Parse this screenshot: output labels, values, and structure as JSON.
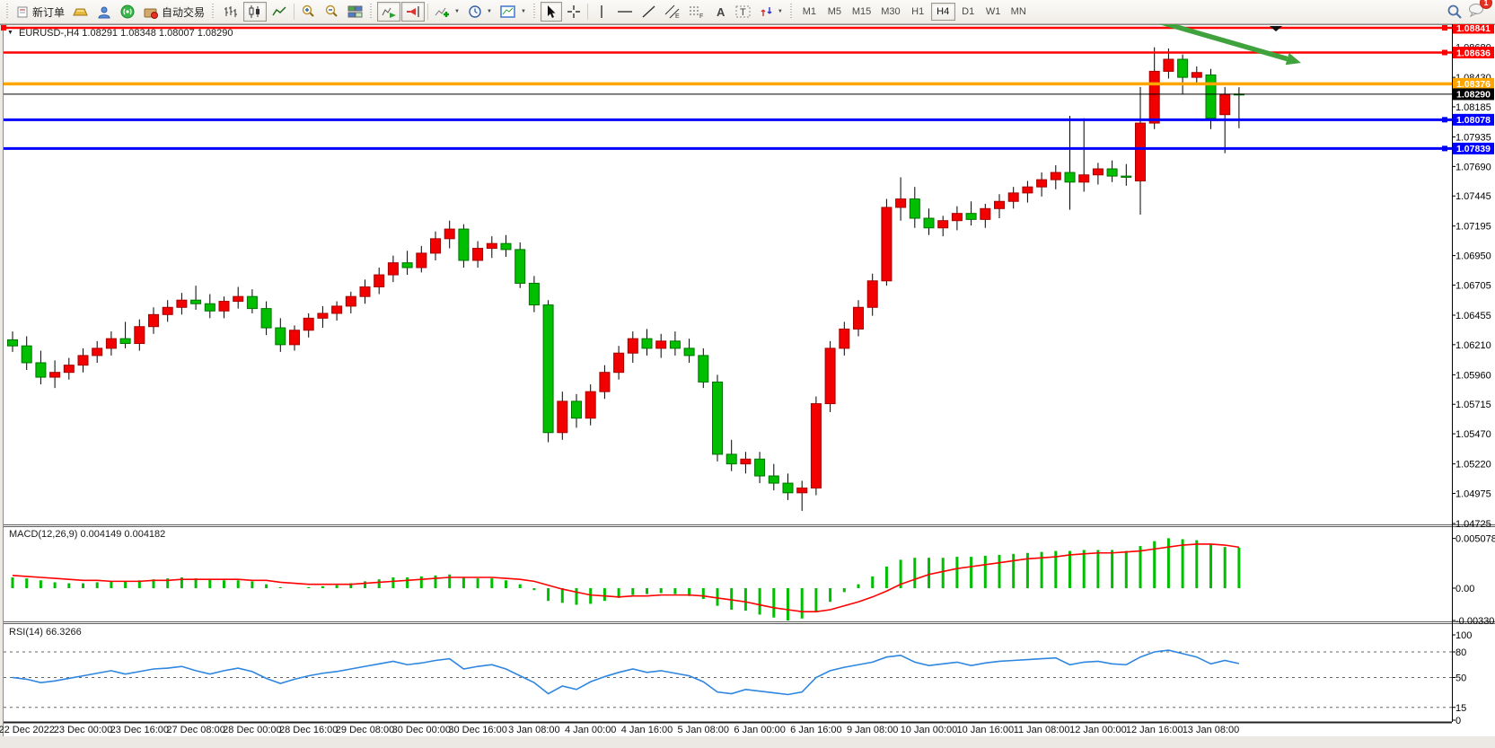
{
  "toolbar": {
    "new_order": "新订单",
    "auto_trading": "自动交易",
    "timeframes": [
      {
        "label": "M1",
        "active": false
      },
      {
        "label": "M5",
        "active": false
      },
      {
        "label": "M15",
        "active": false
      },
      {
        "label": "M30",
        "active": false
      },
      {
        "label": "H1",
        "active": false
      },
      {
        "label": "H4",
        "active": true
      },
      {
        "label": "D1",
        "active": false
      },
      {
        "label": "W1",
        "active": false
      },
      {
        "label": "MN",
        "active": false
      }
    ],
    "notification_count": "1"
  },
  "chart": {
    "title": "EURUSD-,H4 1.08291 1.08348 1.08007 1.08290",
    "symbol": "EURUSD-",
    "timeframe": "H4",
    "ohlc": {
      "open": "1.08291",
      "high": "1.08348",
      "low": "1.08007",
      "close": "1.08290"
    }
  },
  "chart_data": {
    "type": "candlestick",
    "title": "EURUSD- H4",
    "y_range": {
      "min": 1.04725,
      "max": 1.0887
    },
    "y_ticks": [
      1.0868,
      1.0843,
      1.08185,
      1.07935,
      1.0769,
      1.07445,
      1.07195,
      1.0695,
      1.06705,
      1.06455,
      1.0621,
      1.0596,
      1.05715,
      1.0547,
      1.0522,
      1.04975,
      1.04725
    ],
    "x_labels": [
      "22 Dec 2022",
      "23 Dec 00:00",
      "23 Dec 16:00",
      "27 Dec 08:00",
      "28 Dec 00:00",
      "28 Dec 16:00",
      "29 Dec 08:00",
      "30 Dec 00:00",
      "30 Dec 16:00",
      "3 Jan 08:00",
      "4 Jan 00:00",
      "4 Jan 16:00",
      "5 Jan 08:00",
      "6 Jan 00:00",
      "6 Jan 16:00",
      "9 Jan 08:00",
      "10 Jan 00:00",
      "10 Jan 16:00",
      "11 Jan 08:00",
      "12 Jan 00:00",
      "12 Jan 16:00",
      "13 Jan 08:00"
    ],
    "candles_per_label": 4,
    "label_offset_index": 1,
    "colors": {
      "bull": "#F20000",
      "bull_border": "#A80000",
      "bear": "#00BE00",
      "bear_border": "#007300",
      "wick": "#000000",
      "macd_hist": "#00BE00",
      "macd_signal": "#FF0000",
      "rsi_line": "#2E86E0",
      "arrow": "#3FA23C"
    },
    "candles": [
      [
        1.0625,
        1.0632,
        1.0615,
        1.062
      ],
      [
        1.062,
        1.0628,
        1.06,
        1.0606
      ],
      [
        1.0606,
        1.0616,
        1.0588,
        1.0594
      ],
      [
        1.0594,
        1.0608,
        1.0585,
        1.0598
      ],
      [
        1.0598,
        1.061,
        1.0592,
        1.0604
      ],
      [
        1.0604,
        1.0618,
        1.0598,
        1.0612
      ],
      [
        1.0612,
        1.0624,
        1.0606,
        1.0618
      ],
      [
        1.0618,
        1.0632,
        1.0612,
        1.0626
      ],
      [
        1.0626,
        1.064,
        1.0618,
        1.0622
      ],
      [
        1.0622,
        1.0642,
        1.0616,
        1.0636
      ],
      [
        1.0636,
        1.0652,
        1.063,
        1.0646
      ],
      [
        1.0646,
        1.0658,
        1.064,
        1.0652
      ],
      [
        1.0652,
        1.0664,
        1.0646,
        1.0658
      ],
      [
        1.0658,
        1.067,
        1.065,
        1.0655
      ],
      [
        1.0655,
        1.0663,
        1.0643,
        1.0649
      ],
      [
        1.0649,
        1.0661,
        1.0643,
        1.0657
      ],
      [
        1.0657,
        1.0669,
        1.0651,
        1.0661
      ],
      [
        1.0661,
        1.0667,
        1.0647,
        1.0651
      ],
      [
        1.0651,
        1.0657,
        1.0629,
        1.0635
      ],
      [
        1.0635,
        1.0643,
        1.0615,
        1.0621
      ],
      [
        1.0621,
        1.0637,
        1.0616,
        1.0633
      ],
      [
        1.0633,
        1.0647,
        1.0627,
        1.0643
      ],
      [
        1.0643,
        1.0653,
        1.0635,
        1.0647
      ],
      [
        1.0647,
        1.0657,
        1.0641,
        1.0653
      ],
      [
        1.0653,
        1.0665,
        1.0647,
        1.0661
      ],
      [
        1.0661,
        1.0675,
        1.0655,
        1.0669
      ],
      [
        1.0669,
        1.0685,
        1.0663,
        1.0679
      ],
      [
        1.0679,
        1.0695,
        1.0673,
        1.0689
      ],
      [
        1.0689,
        1.0699,
        1.0679,
        1.0685
      ],
      [
        1.0685,
        1.0703,
        1.0681,
        1.0697
      ],
      [
        1.0697,
        1.0715,
        1.0691,
        1.0709
      ],
      [
        1.0709,
        1.0724,
        1.0701,
        1.0717
      ],
      [
        1.0717,
        1.0721,
        1.0685,
        1.0691
      ],
      [
        1.0691,
        1.0707,
        1.0685,
        1.0701
      ],
      [
        1.0701,
        1.0711,
        1.0693,
        1.0705
      ],
      [
        1.0705,
        1.0712,
        1.0694,
        1.07
      ],
      [
        1.07,
        1.0706,
        1.0668,
        1.0672
      ],
      [
        1.0672,
        1.0678,
        1.0648,
        1.0654
      ],
      [
        1.0654,
        1.0658,
        1.054,
        1.0548
      ],
      [
        1.0548,
        1.0582,
        1.0542,
        1.0574
      ],
      [
        1.0574,
        1.058,
        1.0552,
        1.056
      ],
      [
        1.056,
        1.0588,
        1.0554,
        1.0582
      ],
      [
        1.0582,
        1.0604,
        1.0576,
        1.0598
      ],
      [
        1.0598,
        1.062,
        1.0592,
        1.0614
      ],
      [
        1.0614,
        1.0632,
        1.0606,
        1.0626
      ],
      [
        1.0626,
        1.0634,
        1.0612,
        1.0618
      ],
      [
        1.0618,
        1.063,
        1.061,
        1.0624
      ],
      [
        1.0624,
        1.0632,
        1.0612,
        1.0618
      ],
      [
        1.0618,
        1.0626,
        1.0606,
        1.0612
      ],
      [
        1.0612,
        1.0618,
        1.0585,
        1.059
      ],
      [
        1.059,
        1.0596,
        1.0524,
        1.053
      ],
      [
        1.053,
        1.0542,
        1.0516,
        1.0522
      ],
      [
        1.0522,
        1.0532,
        1.0514,
        1.0526
      ],
      [
        1.0526,
        1.0532,
        1.0506,
        1.0512
      ],
      [
        1.0512,
        1.0522,
        1.05,
        1.0506
      ],
      [
        1.0506,
        1.0514,
        1.0492,
        1.0498
      ],
      [
        1.0498,
        1.0508,
        1.0483,
        1.0502
      ],
      [
        1.0502,
        1.0578,
        1.0496,
        1.0572
      ],
      [
        1.0572,
        1.0624,
        1.0565,
        1.0618
      ],
      [
        1.0618,
        1.064,
        1.0612,
        1.0634
      ],
      [
        1.0634,
        1.0658,
        1.0628,
        1.0652
      ],
      [
        1.0652,
        1.068,
        1.0645,
        1.0674
      ],
      [
        1.0674,
        1.0742,
        1.067,
        1.0735
      ],
      [
        1.0735,
        1.076,
        1.0724,
        1.0742
      ],
      [
        1.0742,
        1.0752,
        1.0718,
        1.0726
      ],
      [
        1.0726,
        1.0734,
        1.0712,
        1.0718
      ],
      [
        1.0718,
        1.0728,
        1.0711,
        1.0724
      ],
      [
        1.0724,
        1.0736,
        1.0716,
        1.073
      ],
      [
        1.073,
        1.074,
        1.072,
        1.0725
      ],
      [
        1.0725,
        1.0738,
        1.0718,
        1.0734
      ],
      [
        1.0734,
        1.0746,
        1.0726,
        1.074
      ],
      [
        1.074,
        1.0752,
        1.0734,
        1.0747
      ],
      [
        1.0747,
        1.0757,
        1.0739,
        1.0752
      ],
      [
        1.0752,
        1.0764,
        1.0744,
        1.0758
      ],
      [
        1.0758,
        1.077,
        1.075,
        1.0764
      ],
      [
        1.0764,
        1.0811,
        1.0733,
        1.0756
      ],
      [
        1.0756,
        1.0809,
        1.0748,
        1.0762
      ],
      [
        1.0762,
        1.0772,
        1.0754,
        1.0767
      ],
      [
        1.0767,
        1.0774,
        1.0756,
        1.0761
      ],
      [
        1.0761,
        1.0771,
        1.0753,
        1.076
      ],
      [
        1.0757,
        1.0835,
        1.0729,
        1.0805
      ],
      [
        1.0805,
        1.0868,
        1.08,
        1.0848
      ],
      [
        1.0848,
        1.0867,
        1.0842,
        1.0858
      ],
      [
        1.0858,
        1.0862,
        1.0829,
        1.0843
      ],
      [
        1.0843,
        1.0852,
        1.0838,
        1.0847
      ],
      [
        1.0845,
        1.085,
        1.08,
        1.0809
      ],
      [
        1.0812,
        1.0835,
        1.078,
        1.0829
      ],
      [
        1.08291,
        1.08348,
        1.08007,
        1.0829
      ]
    ],
    "h_lines": [
      {
        "price": 1.08841,
        "label": "1.08841",
        "color": "#FF0000",
        "width": 2.5,
        "marker": true,
        "type": "resistance"
      },
      {
        "price": 1.08636,
        "label": "1.08636",
        "color": "#FF0000",
        "width": 2.5,
        "marker": true,
        "type": "resistance"
      },
      {
        "price": 1.08376,
        "label": "1.08376",
        "color": "#FFA500",
        "width": 3.5,
        "marker": false,
        "type": "pivot"
      },
      {
        "price": 1.0829,
        "label": "1.08290",
        "color": "#000000",
        "width": 1,
        "marker": false,
        "type": "current-price"
      },
      {
        "price": 1.08078,
        "label": "1.08078",
        "color": "#0000FF",
        "width": 3,
        "marker": true,
        "type": "support"
      },
      {
        "price": 1.07839,
        "label": "1.07839",
        "color": "#0000FF",
        "width": 3,
        "marker": true,
        "type": "support"
      }
    ],
    "annotation_arrow": {
      "from": [
        1283,
        22
      ],
      "to": [
        1449,
        70
      ]
    },
    "macd": {
      "label": "MACD(12,26,9) 0.004149 0.004182",
      "params": "12,26,9",
      "value": 0.004149,
      "signal_value": 0.004182,
      "axis_labels": [
        {
          "value": 0.005078,
          "text": "0.005078"
        },
        {
          "value": 0,
          "text": "0.00"
        },
        {
          "value": -0.003301,
          "text": "-0.003301"
        }
      ],
      "histogram": [
        0.0011,
        0.001,
        0.0008,
        0.0006,
        0.0005,
        0.0005,
        0.0006,
        0.0007,
        0.0007,
        0.0008,
        0.0009,
        0.001,
        0.0011,
        0.001,
        0.0009,
        0.0008,
        0.0008,
        0.0007,
        0.0004,
        0.0001,
        0.0,
        0.0001,
        0.0002,
        0.0003,
        0.0005,
        0.0007,
        0.0009,
        0.0011,
        0.0011,
        0.0012,
        0.0013,
        0.0014,
        0.0011,
        0.001,
        0.001,
        0.0008,
        0.0004,
        -0.0002,
        -0.0013,
        -0.0015,
        -0.0017,
        -0.0016,
        -0.0013,
        -0.001,
        -0.0007,
        -0.0006,
        -0.0005,
        -0.0006,
        -0.0008,
        -0.0011,
        -0.0018,
        -0.0022,
        -0.0023,
        -0.0027,
        -0.003,
        -0.0033,
        -0.0031,
        -0.0024,
        -0.0014,
        -0.0004,
        0.0004,
        0.0012,
        0.0022,
        0.0029,
        0.0031,
        0.0031,
        0.0031,
        0.0032,
        0.0032,
        0.0033,
        0.0034,
        0.0035,
        0.0036,
        0.0037,
        0.0038,
        0.0038,
        0.0039,
        0.0039,
        0.0039,
        0.0038,
        0.0043,
        0.0048,
        0.0051,
        0.005,
        0.0049,
        0.0045,
        0.0042,
        0.004149
      ],
      "signal": [
        0.0013,
        0.0012,
        0.0011,
        0.001,
        0.0009,
        0.0008,
        0.0008,
        0.0007,
        0.0007,
        0.0007,
        0.0008,
        0.0008,
        0.0009,
        0.0009,
        0.0009,
        0.0009,
        0.0009,
        0.0008,
        0.0008,
        0.0006,
        0.0005,
        0.0004,
        0.0004,
        0.0004,
        0.0004,
        0.0005,
        0.0006,
        0.0007,
        0.0008,
        0.0009,
        0.001,
        0.0011,
        0.0011,
        0.0011,
        0.0011,
        0.001,
        0.0009,
        0.0007,
        0.0003,
        -0.0001,
        -0.0004,
        -0.0007,
        -0.0008,
        -0.0009,
        -0.0008,
        -0.0008,
        -0.0007,
        -0.0007,
        -0.0007,
        -0.0008,
        -0.001,
        -0.0012,
        -0.0014,
        -0.0017,
        -0.002,
        -0.0022,
        -0.0024,
        -0.0024,
        -0.0022,
        -0.0018,
        -0.0014,
        -0.0009,
        -0.0003,
        0.0004,
        0.0009,
        0.0014,
        0.0017,
        0.002,
        0.0022,
        0.0024,
        0.0026,
        0.0028,
        0.003,
        0.0031,
        0.0032,
        0.0034,
        0.0035,
        0.0036,
        0.0036,
        0.0037,
        0.0038,
        0.004,
        0.0042,
        0.0044,
        0.0045,
        0.0045,
        0.0044,
        0.004182
      ]
    },
    "rsi": {
      "label": "RSI(14) 66.3266",
      "period": 14,
      "value": 66.3266,
      "axis_labels": [
        {
          "value": 100,
          "text": "100"
        },
        {
          "value": 80,
          "text": "80"
        },
        {
          "value": 50,
          "text": "50"
        },
        {
          "value": 15,
          "text": "15"
        },
        {
          "value": 0,
          "text": "0"
        }
      ],
      "levels": [
        80,
        50,
        15
      ],
      "values": [
        50,
        48,
        44,
        46,
        49,
        52,
        55,
        58,
        54,
        57,
        60,
        61,
        63,
        58,
        54,
        58,
        61,
        57,
        49,
        43,
        48,
        52,
        55,
        57,
        60,
        63,
        66,
        69,
        65,
        67,
        70,
        72,
        60,
        63,
        65,
        60,
        52,
        44,
        31,
        40,
        36,
        45,
        51,
        56,
        60,
        56,
        58,
        55,
        52,
        45,
        33,
        31,
        36,
        34,
        32,
        30,
        33,
        50,
        58,
        62,
        65,
        68,
        74,
        76,
        68,
        64,
        66,
        68,
        64,
        67,
        69,
        70,
        71,
        72,
        73,
        65,
        68,
        69,
        66,
        65,
        74,
        80,
        82,
        78,
        74,
        66,
        70,
        66.33
      ]
    }
  }
}
